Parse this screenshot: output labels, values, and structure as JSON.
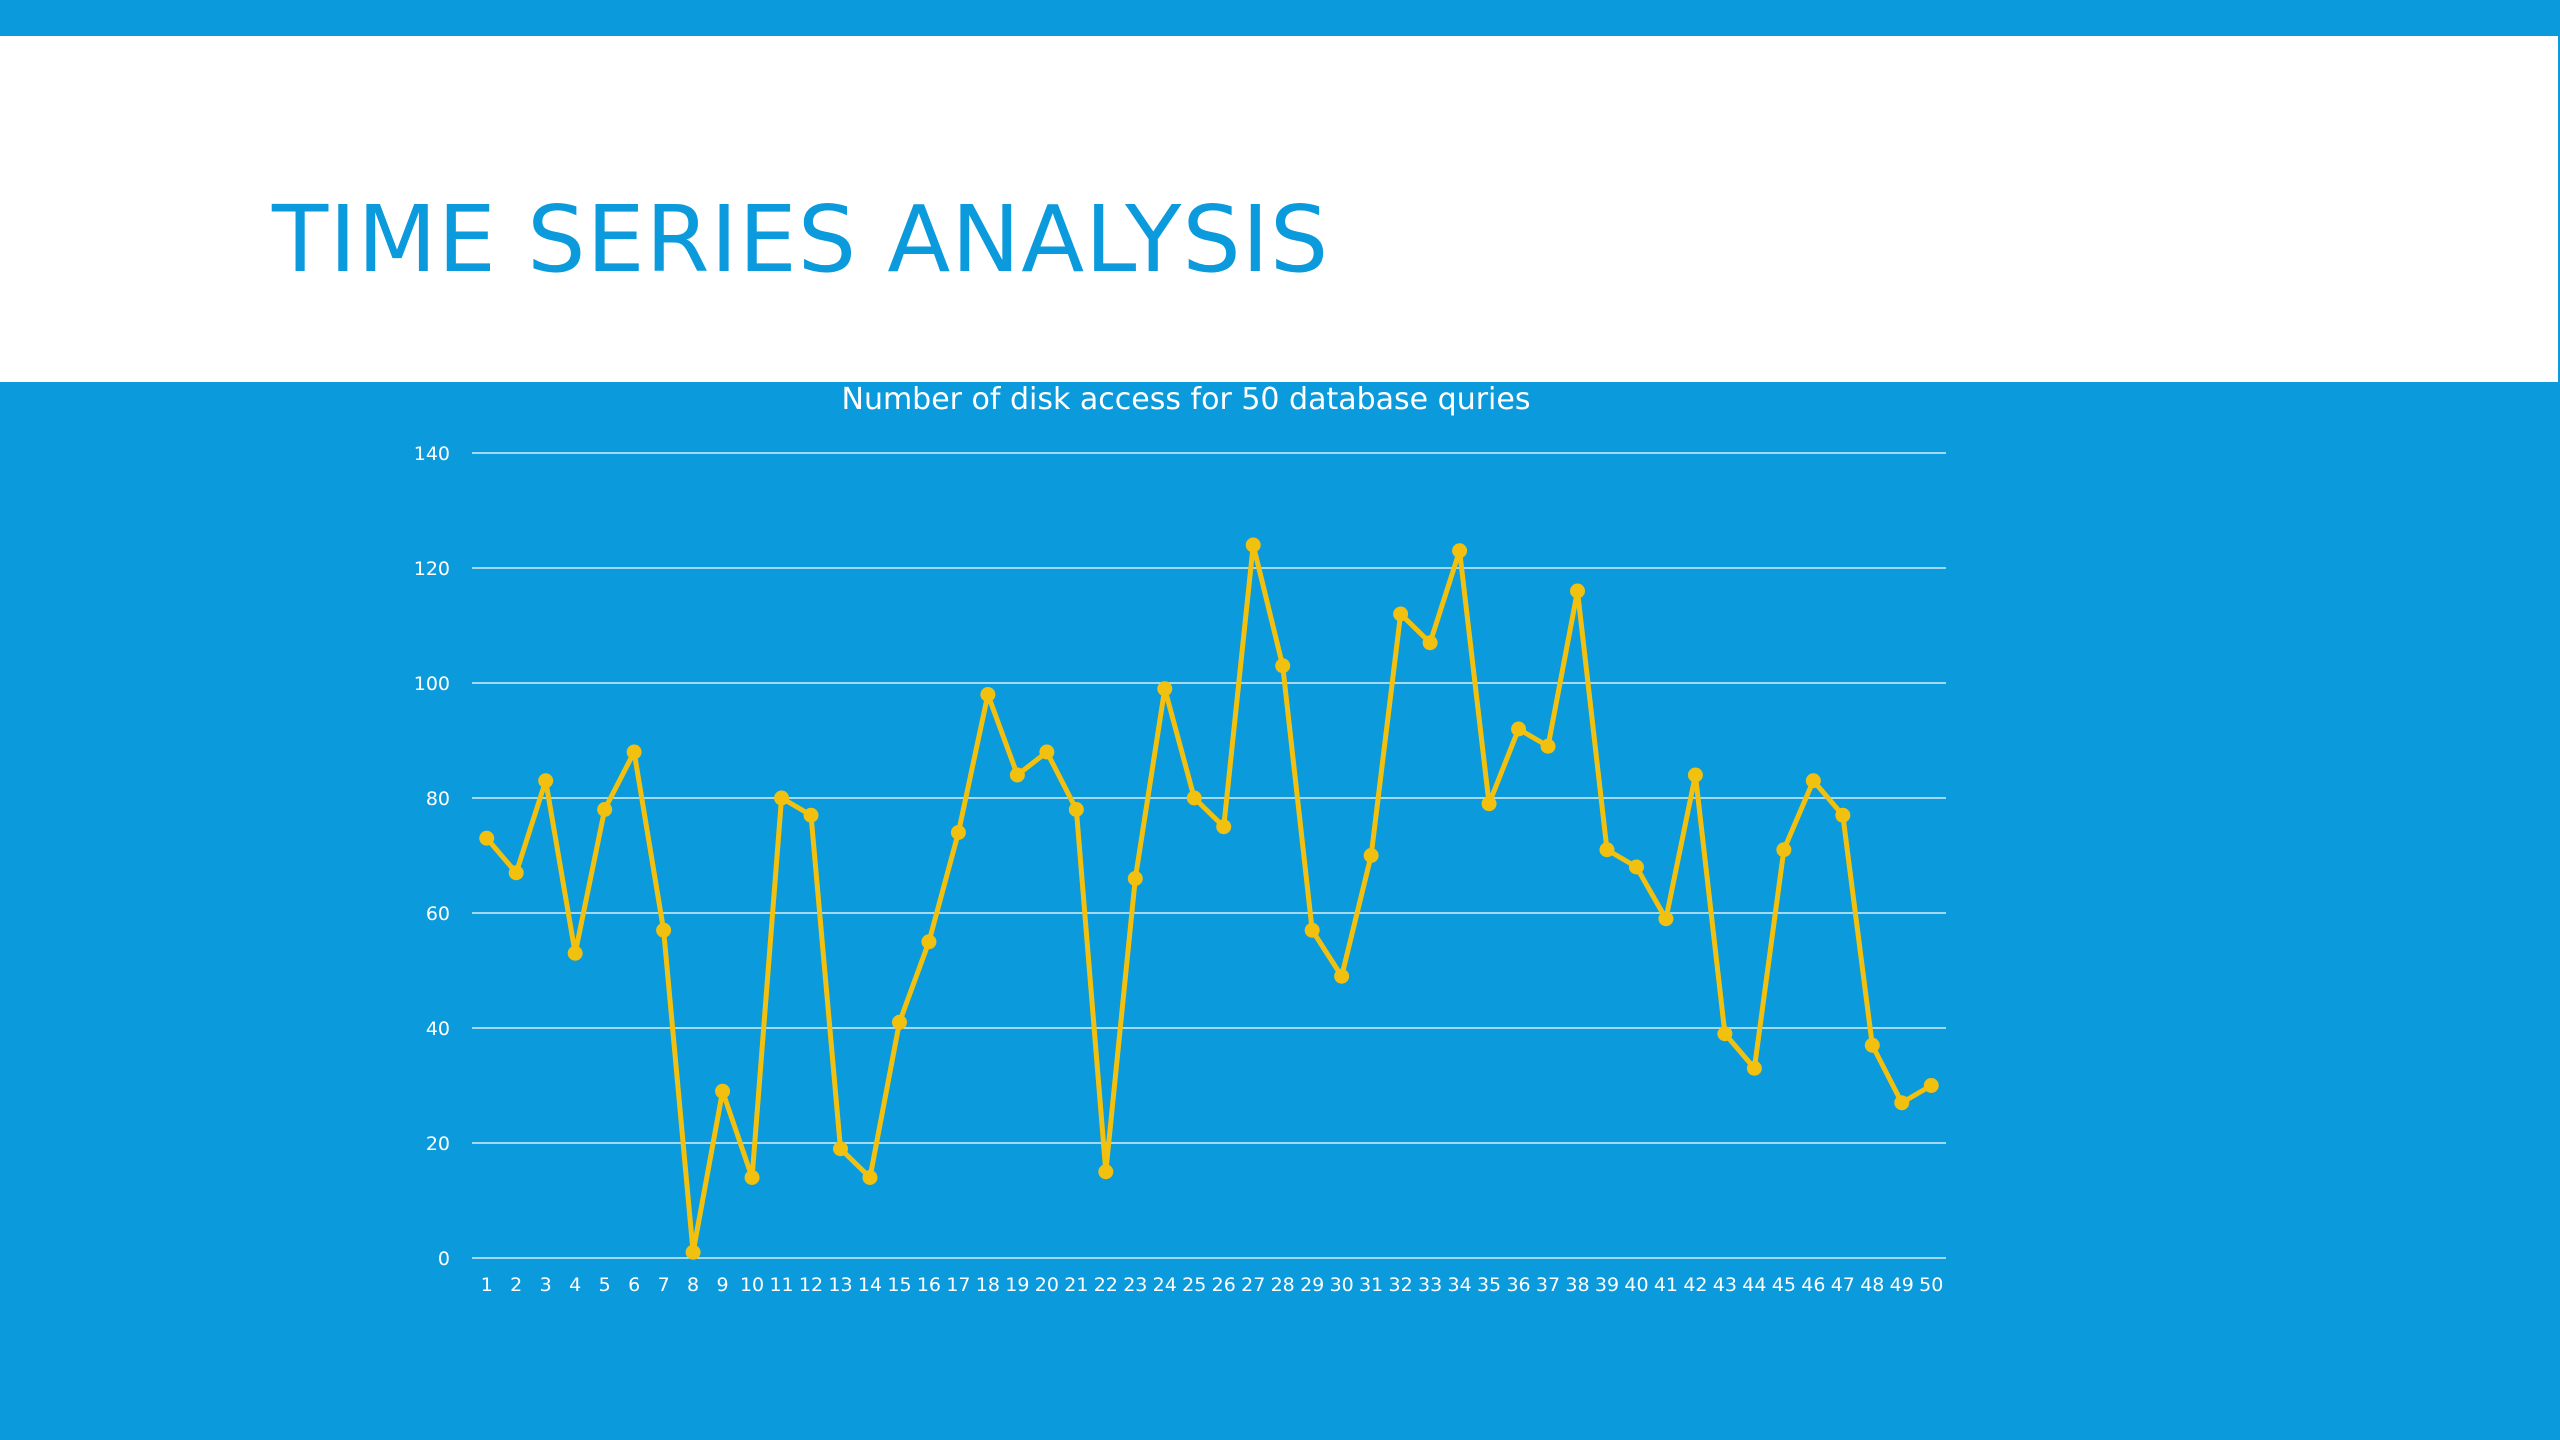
{
  "slide": {
    "title": "TIME SERIES ANALYSIS"
  },
  "colors": {
    "background": "#0b9adc",
    "title_panel": "#ffffff",
    "series": "#f2c10f",
    "gridlines": "#d6ecf8"
  },
  "chart_data": {
    "type": "line",
    "title": "Number of disk access for 50 database quries",
    "xlabel": "",
    "ylabel": "",
    "ylim": [
      0,
      140
    ],
    "yticks": [
      0,
      20,
      40,
      60,
      80,
      100,
      120,
      140
    ],
    "grid": true,
    "legend": "none",
    "markers": true,
    "x": [
      1,
      2,
      3,
      4,
      5,
      6,
      7,
      8,
      9,
      10,
      11,
      12,
      13,
      14,
      15,
      16,
      17,
      18,
      19,
      20,
      21,
      22,
      23,
      24,
      25,
      26,
      27,
      28,
      29,
      30,
      31,
      32,
      33,
      34,
      35,
      36,
      37,
      38,
      39,
      40,
      41,
      42,
      43,
      44,
      45,
      46,
      47,
      48,
      49,
      50
    ],
    "series": [
      {
        "values": [
          73,
          67,
          83,
          53,
          78,
          88,
          57,
          1,
          29,
          14,
          80,
          77,
          19,
          14,
          41,
          55,
          74,
          98,
          84,
          88,
          78,
          15,
          66,
          99,
          80,
          75,
          124,
          103,
          57,
          49,
          70,
          112,
          107,
          123,
          79,
          92,
          89,
          116,
          71,
          68,
          59,
          84,
          39,
          33,
          71,
          83,
          77,
          37,
          27,
          30
        ]
      }
    ]
  }
}
